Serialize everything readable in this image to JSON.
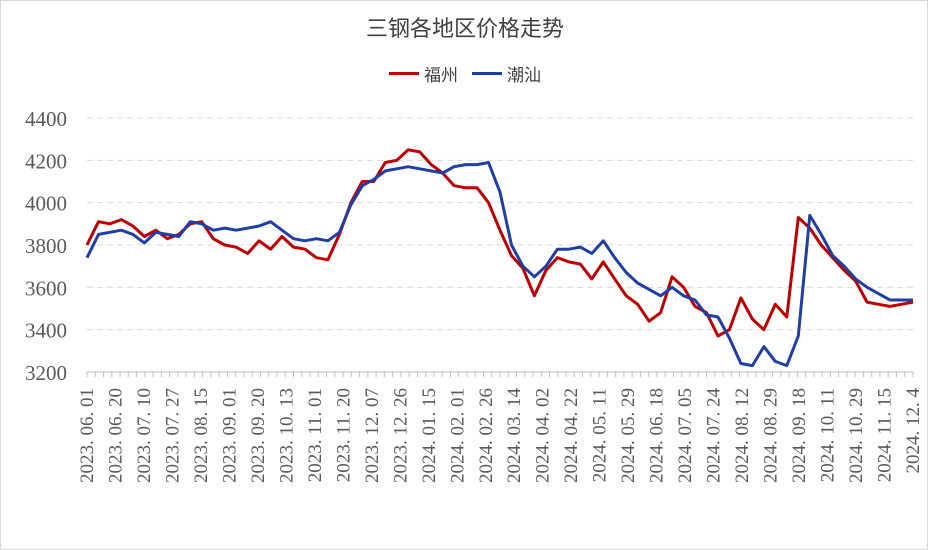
{
  "colors": {
    "fuzhou": "#c00000",
    "chaoshan": "#1f3ea6",
    "grid": "#d9d9d9",
    "text": "#595959"
  },
  "chart_data": {
    "type": "line",
    "title": "三钢各地区价格走势",
    "legend_position": "top-center",
    "grid": true,
    "ylim": [
      3200,
      4400
    ],
    "yticks": [
      3200,
      3400,
      3600,
      3800,
      4000,
      4200,
      4400
    ],
    "xticks": [
      "2023. 06. 01",
      "2023. 06. 20",
      "2023. 07. 10",
      "2023. 07. 27",
      "2023. 08. 15",
      "2023. 09. 01",
      "2023. 09. 20",
      "2023. 10. 13",
      "2023. 11. 01",
      "2023. 11. 20",
      "2023. 12. 07",
      "2023. 12. 26",
      "2024. 01. 15",
      "2024. 02. 01",
      "2024. 02. 26",
      "2024. 03. 14",
      "2024. 04. 02",
      "2024. 04. 22",
      "2024. 05. 11",
      "2024. 05. 29",
      "2024. 06. 18",
      "2024. 07. 05",
      "2024. 07. 24",
      "2024. 08. 12",
      "2024. 08. 29",
      "2024. 09. 18",
      "2024. 10. 11",
      "2024. 10. 29",
      "2024. 11. 15",
      "2024. 12. 4"
    ],
    "series": [
      {
        "name": "福州",
        "color": "#c00000",
        "values": [
          3800,
          3910,
          3900,
          3920,
          3890,
          3840,
          3870,
          3830,
          3850,
          3900,
          3910,
          3830,
          3800,
          3790,
          3760,
          3820,
          3780,
          3840,
          3790,
          3780,
          3740,
          3730,
          3850,
          4000,
          4100,
          4100,
          4190,
          4200,
          4250,
          4240,
          4180,
          4140,
          4080,
          4070,
          4070,
          4000,
          3870,
          3750,
          3690,
          3560,
          3680,
          3740,
          3720,
          3710,
          3640,
          3720,
          3640,
          3560,
          3520,
          3440,
          3480,
          3650,
          3600,
          3510,
          3480,
          3370,
          3400,
          3550,
          3450,
          3400,
          3520,
          3460,
          3930,
          3880,
          3800,
          3740,
          3680,
          3630,
          3530,
          3520,
          3510,
          3520,
          3530
        ]
      },
      {
        "name": "潮汕",
        "color": "#1f3ea6",
        "values": [
          3740,
          3850,
          3860,
          3870,
          3850,
          3810,
          3860,
          3850,
          3840,
          3910,
          3900,
          3870,
          3880,
          3870,
          3880,
          3890,
          3910,
          3870,
          3830,
          3820,
          3830,
          3820,
          3860,
          3990,
          4080,
          4110,
          4150,
          4160,
          4170,
          4160,
          4150,
          4140,
          4170,
          4180,
          4180,
          4190,
          4050,
          3800,
          3700,
          3650,
          3700,
          3780,
          3780,
          3790,
          3760,
          3820,
          3740,
          3670,
          3620,
          3590,
          3560,
          3600,
          3560,
          3540,
          3470,
          3460,
          3360,
          3240,
          3230,
          3320,
          3250,
          3230,
          3370,
          3940,
          3850,
          3750,
          3700,
          3640,
          3600,
          3570,
          3540,
          3540,
          3540
        ]
      }
    ]
  }
}
